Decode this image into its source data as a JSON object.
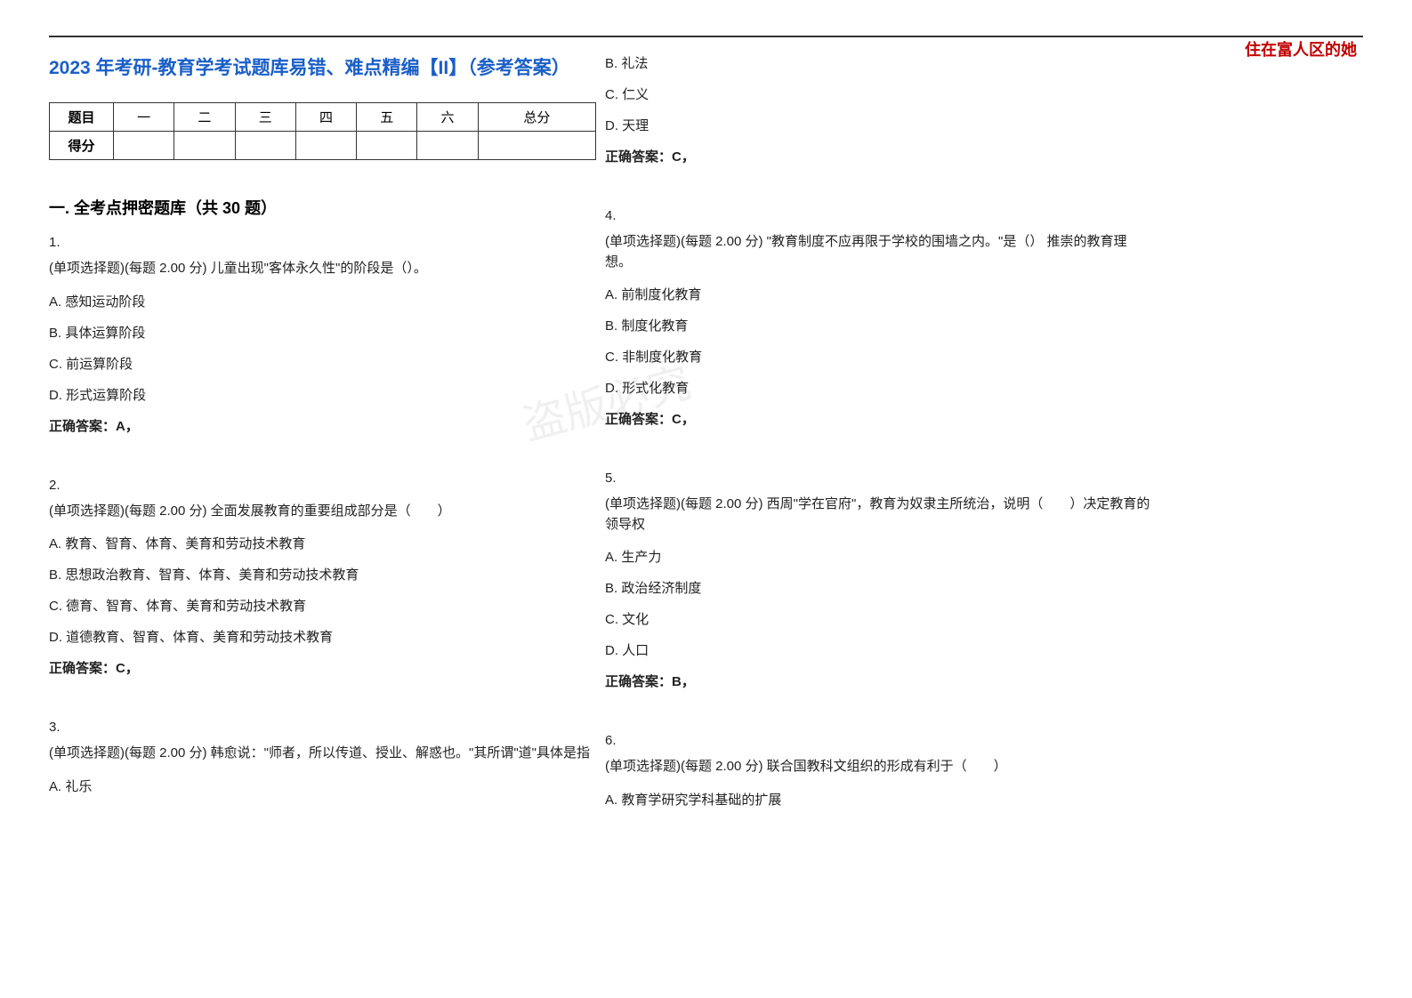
{
  "header": {
    "watermark": "住在富人区的她"
  },
  "title": "2023 年考研-教育学考试题库易错、难点精编【II】（参考答案）",
  "score_table": {
    "row1": [
      "题目",
      "一",
      "二",
      "三",
      "四",
      "五",
      "六",
      "总分"
    ],
    "row2_label": "得分"
  },
  "section": "一. 全考点押密题库（共 30 题）",
  "q1": {
    "num": "1.",
    "stem": "(单项选择题)(每题 2.00 分) 儿童出现\"客体永久性\"的阶段是（）。",
    "A": "A.  感知运动阶段",
    "B": "B.  具体运算阶段",
    "C": "C.  前运算阶段",
    "D": "D.  形式运算阶段",
    "ans": "正确答案：A，"
  },
  "q2": {
    "num": "2.",
    "stem": "(单项选择题)(每题 2.00 分) 全面发展教育的重要组成部分是（　　）",
    "A": "A.  教育、智育、体育、美育和劳动技术教育",
    "B": "B.  思想政治教育、智育、体育、美育和劳动技术教育",
    "C": "C.  德育、智育、体育、美育和劳动技术教育",
    "D": "D.  道德教育、智育、体育、美育和劳动技术教育",
    "ans": "正确答案：C，"
  },
  "q3": {
    "num": "3.",
    "stem": "(单项选择题)(每题 2.00 分) 韩愈说：\"师者，所以传道、授业、解惑也。\"其所谓\"道\"具体是指",
    "A": "A.  礼乐",
    "B": "B.  礼法",
    "C": "C.  仁义",
    "D": "D.  天理",
    "ans": "正确答案：C，"
  },
  "q4": {
    "num": "4.",
    "stem": "(单项选择题)(每题 2.00 分) \"教育制度不应再限于学校的围墙之内。\"是（） 推崇的教育理想。",
    "A": "A.  前制度化教育",
    "B": "B.  制度化教育",
    "C": "C.  非制度化教育",
    "D": "D.  形式化教育",
    "ans": "正确答案：C，"
  },
  "q5": {
    "num": "5.",
    "stem": "(单项选择题)(每题 2.00 分) 西周\"学在官府\"，教育为奴隶主所统治，说明（　　）决定教育的领导权",
    "A": "A.  生产力",
    "B": "B.  政治经济制度",
    "C": "C.  文化",
    "D": "D.  人口",
    "ans": "正确答案：B，"
  },
  "q6": {
    "num": "6.",
    "stem": "(单项选择题)(每题 2.00 分) 联合国教科文组织的形成有利于（　　）",
    "A": "A.  教育学研究学科基础的扩展"
  },
  "styling": {
    "page_bg": "#ffffff",
    "title_color": "#1a5fc7",
    "watermark_color": "#c00000",
    "text_color": "#222222",
    "border_color": "#333333",
    "title_fontsize": 21,
    "body_fontsize": 15,
    "section_fontsize": 18
  }
}
